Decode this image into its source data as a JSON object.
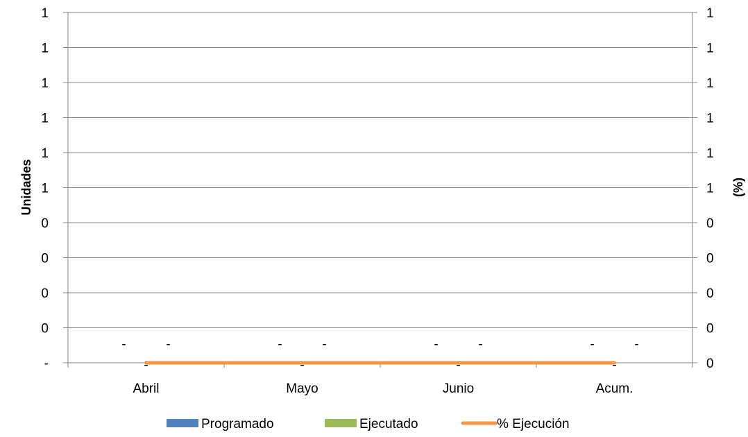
{
  "chart_data": {
    "type": "bar",
    "categories": [
      "Abril",
      "Mayo",
      "Junio",
      "Acum."
    ],
    "ylabel": "Unidades",
    "y2label": "(%)",
    "y_tick_labels": [
      "-",
      "0",
      "0",
      "0",
      "0",
      "1",
      "1",
      "1",
      "1",
      "1",
      "1"
    ],
    "y2_tick_labels": [
      "0",
      "0",
      "0",
      "0",
      "0",
      "1",
      "1",
      "1",
      "1",
      "1",
      "1"
    ],
    "series": [
      {
        "name": "Programado",
        "type": "bar",
        "color": "#4f81bd",
        "values": [
          0,
          0,
          0,
          0
        ],
        "data_labels": [
          "-",
          "-",
          "-",
          "-"
        ]
      },
      {
        "name": "Ejecutado",
        "type": "bar",
        "color": "#9bbb59",
        "values": [
          0,
          0,
          0,
          0
        ],
        "data_labels": [
          "-",
          "-",
          "-",
          "-"
        ]
      },
      {
        "name": "% Ejecución",
        "type": "line",
        "axis": "secondary",
        "color": "#f79646",
        "values": [
          0,
          0,
          0,
          0
        ],
        "data_labels": [
          "-",
          "-",
          "-",
          "-"
        ]
      }
    ],
    "grid": true,
    "legend": "bottom"
  }
}
